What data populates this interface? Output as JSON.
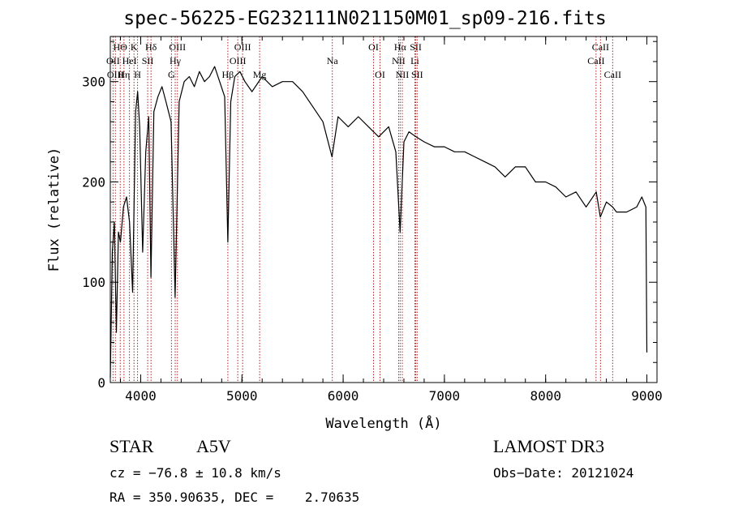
{
  "chart_data": {
    "type": "line",
    "title": "spec-56225-EG232111N021150M01_sp09-216.fits",
    "xlabel": "Wavelength (Å)",
    "ylabel": "Flux (relative)",
    "xlim": [
      3700,
      9100
    ],
    "ylim": [
      0,
      345
    ],
    "x_ticks": [
      4000,
      5000,
      6000,
      7000,
      8000,
      9000
    ],
    "y_ticks": [
      0,
      100,
      200,
      300
    ],
    "grid": false,
    "series": [
      {
        "x": [
          3700,
          3720,
          3740,
          3760,
          3780,
          3800,
          3830,
          3860,
          3890,
          3920,
          3950,
          3970,
          3990,
          4020,
          4050,
          4080,
          4101,
          4130,
          4170,
          4210,
          4250,
          4300,
          4340,
          4380,
          4430,
          4480,
          4530,
          4580,
          4630,
          4680,
          4730,
          4780,
          4830,
          4861,
          4890,
          4930,
          4980,
          5030,
          5100,
          5200,
          5300,
          5400,
          5500,
          5600,
          5700,
          5800,
          5890,
          5950,
          6050,
          6150,
          6250,
          6350,
          6450,
          6520,
          6563,
          6600,
          6650,
          6720,
          6800,
          6900,
          7000,
          7100,
          7200,
          7300,
          7400,
          7500,
          7600,
          7700,
          7800,
          7900,
          8000,
          8100,
          8200,
          8300,
          8400,
          8500,
          8540,
          8600,
          8662,
          8700,
          8800,
          8900,
          8950,
          8990,
          9000
        ],
        "values": [
          5,
          130,
          160,
          50,
          150,
          140,
          175,
          185,
          160,
          90,
          270,
          290,
          255,
          130,
          230,
          265,
          105,
          270,
          285,
          295,
          280,
          260,
          85,
          280,
          300,
          305,
          295,
          310,
          300,
          305,
          315,
          300,
          285,
          140,
          280,
          305,
          310,
          300,
          290,
          305,
          295,
          300,
          300,
          290,
          275,
          260,
          225,
          265,
          255,
          265,
          255,
          245,
          255,
          230,
          150,
          240,
          250,
          245,
          240,
          235,
          235,
          230,
          230,
          225,
          220,
          215,
          205,
          215,
          215,
          200,
          200,
          195,
          185,
          190,
          175,
          190,
          165,
          180,
          175,
          170,
          170,
          175,
          185,
          175,
          30
        ]
      }
    ],
    "lines": [
      {
        "label": "HΘ",
        "wl": 3798,
        "row": 0
      },
      {
        "label": "OII",
        "wl": 3727,
        "row": 1
      },
      {
        "label": "OIII",
        "wl": 3750,
        "row": 2
      },
      {
        "label": "Hη",
        "wl": 3835,
        "row": 2
      },
      {
        "label": "HeI",
        "wl": 3889,
        "row": 1
      },
      {
        "label": "K",
        "wl": 3934,
        "row": 0
      },
      {
        "label": "H",
        "wl": 3969,
        "row": 2
      },
      {
        "label": "SII",
        "wl": 4069,
        "row": 1
      },
      {
        "label": "Hδ",
        "wl": 4102,
        "row": 0
      },
      {
        "label": "OIII",
        "wl": 4363,
        "row": 0
      },
      {
        "label": "Hγ",
        "wl": 4341,
        "row": 1
      },
      {
        "label": "G",
        "wl": 4304,
        "row": 2
      },
      {
        "label": "Hβ",
        "wl": 4861,
        "row": 2
      },
      {
        "label": "OIII",
        "wl": 5007,
        "row": 0
      },
      {
        "label": "OIII",
        "wl": 4959,
        "row": 1
      },
      {
        "label": "Mg",
        "wl": 5175,
        "row": 2
      },
      {
        "label": "Na",
        "wl": 5893,
        "row": 1
      },
      {
        "label": "OI",
        "wl": 6300,
        "row": 0
      },
      {
        "label": "OI",
        "wl": 6364,
        "row": 2
      },
      {
        "label": "Hα",
        "wl": 6563,
        "row": 0
      },
      {
        "label": "NII",
        "wl": 6548,
        "row": 1
      },
      {
        "label": "NII",
        "wl": 6584,
        "row": 2
      },
      {
        "label": "SII",
        "wl": 6717,
        "row": 0
      },
      {
        "label": "Li",
        "wl": 6708,
        "row": 1
      },
      {
        "label": "SII",
        "wl": 6731,
        "row": 2
      },
      {
        "label": "CaII",
        "wl": 8542,
        "row": 0
      },
      {
        "label": "CaII",
        "wl": 8498,
        "row": 1
      },
      {
        "label": "CaII",
        "wl": 8662,
        "row": 2
      }
    ]
  },
  "info": {
    "object_class": "STAR",
    "subclass": "A5V",
    "survey": "LAMOST DR3",
    "cz": "cz = −76.8 ± 10.8 km/s",
    "obs_date": "Obs−Date: 20121024",
    "coords": "RA = 350.90635, DEC =    2.70635"
  },
  "colors": {
    "spectrum": "#000000",
    "line_marker": "#b22222"
  }
}
